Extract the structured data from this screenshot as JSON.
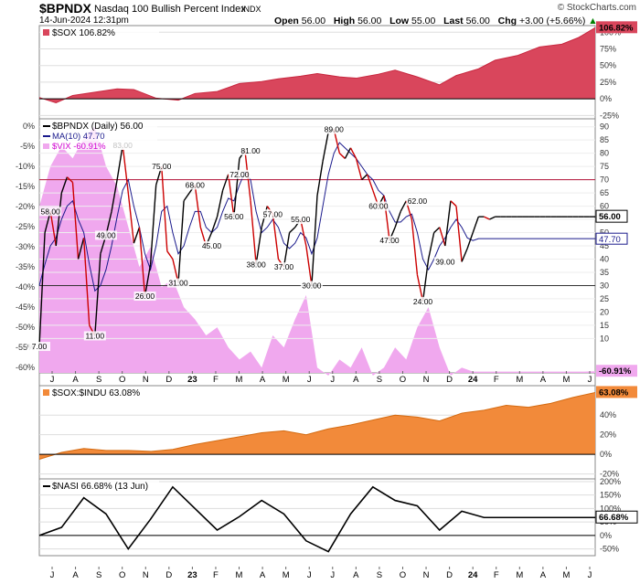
{
  "header": {
    "symbol": "$BPNDX",
    "description": "Nasdaq 100 Bullish Percent Index",
    "exchange": "INDX",
    "date": "14-Jun-2024 12:31pm",
    "brand": "© StockCharts.com",
    "open_label": "Open",
    "open": "56.00",
    "high_label": "High",
    "high": "56.00",
    "low_label": "Low",
    "low": "55.00",
    "last_label": "Last",
    "last": "56.00",
    "chg_label": "Chg",
    "chg": "+3.00 (+5.66%)",
    "up_arrow": "▲"
  },
  "colors": {
    "sox": "#c8273f",
    "sox_fill": "#d9465c",
    "bpndx": "#000000",
    "bpndx_down": "#cc0000",
    "ma": "#1a1a8c",
    "vix": "#f0a8ee",
    "vix_text": "#d000d0",
    "ratio": "#f28a3a",
    "ratio_line": "#d46a10",
    "nasi": "#000000",
    "hline": "#b3143a"
  },
  "chart_data": [
    {
      "id": "sox",
      "type": "area",
      "legend": "$SOX 106.82%",
      "last_label": "106.82%",
      "ylim": [
        -30,
        110
      ],
      "y_ticks": [
        "100%",
        "75%",
        "50%",
        "25%",
        "0%",
        "-25%"
      ],
      "y_tick_values": [
        100,
        75,
        50,
        25,
        0,
        -25
      ],
      "x": [
        0,
        3,
        6,
        10,
        14,
        17,
        21,
        25,
        28,
        32,
        36,
        40,
        43,
        47,
        50,
        54,
        57,
        61,
        64,
        68,
        72,
        75,
        79,
        82,
        86,
        90,
        94,
        97,
        100
      ],
      "values": [
        2,
        -6,
        5,
        10,
        15,
        14,
        1,
        -2,
        8,
        11,
        23,
        26,
        30,
        34,
        38,
        33,
        31,
        37,
        43,
        33,
        21,
        35,
        45,
        58,
        65,
        78,
        82,
        92,
        106.82
      ]
    },
    {
      "id": "bpndx",
      "type": "line",
      "legend_main": "$BPNDX (Daily) 56.00",
      "legend_ma": "MA(10) 47.70",
      "legend_vix": "$VIX -60.91%",
      "y_ticks_right": [
        "90",
        "85",
        "80",
        "75",
        "70",
        "65",
        "60",
        "55",
        "50",
        "45",
        "40",
        "35",
        "30",
        "25",
        "20",
        "15",
        "10"
      ],
      "y_ticks_left": [
        "0%",
        "-5%",
        "-10%",
        "-15%",
        "-20%",
        "-25%",
        "-30%",
        "-35%",
        "-40%",
        "-45%",
        "-50%",
        "-55%",
        "-60%"
      ],
      "ylim": [
        -3,
        93
      ],
      "hlines": [
        70,
        30
      ],
      "bpndx_x": [
        0,
        1,
        2,
        3,
        4,
        5,
        6,
        7,
        8,
        9,
        10,
        11,
        12,
        13,
        14,
        15,
        16,
        17,
        18,
        19,
        20,
        21,
        22,
        23,
        24,
        25,
        26,
        27,
        28,
        29,
        30,
        31,
        32,
        33,
        34,
        35,
        36,
        37,
        38,
        39,
        40,
        41,
        42,
        43,
        44,
        45,
        46,
        47,
        48,
        49,
        50,
        51,
        52,
        53,
        54,
        55,
        56,
        57,
        58,
        59,
        60,
        61,
        62,
        63,
        64,
        65,
        66,
        67,
        68,
        69,
        70,
        71,
        72,
        73,
        74,
        75,
        76,
        77,
        78,
        79,
        80,
        81,
        82,
        83,
        84,
        85,
        86,
        87,
        88,
        89,
        90,
        91,
        92,
        93,
        94,
        95,
        96,
        97,
        98,
        99,
        100
      ],
      "bpndx_y": [
        7,
        50,
        58,
        45,
        65,
        71,
        69,
        40,
        48,
        15,
        11,
        42,
        49,
        58,
        70,
        83,
        65,
        46,
        52,
        26,
        38,
        68,
        75,
        43,
        40,
        31,
        62,
        65,
        68,
        52,
        45,
        50,
        56,
        66,
        72,
        56,
        78,
        81,
        62,
        38,
        52,
        60,
        57,
        40,
        37,
        50,
        52,
        55,
        45,
        30,
        64,
        77,
        88,
        89,
        80,
        78,
        82,
        78,
        70,
        72,
        66,
        60,
        64,
        47,
        52,
        58,
        62,
        55,
        34,
        24,
        40,
        50,
        52,
        45,
        62,
        60,
        39,
        44,
        50,
        56,
        56,
        55,
        56,
        56,
        56,
        56,
        56,
        56,
        56,
        56,
        56,
        56,
        56,
        56,
        56,
        56,
        56,
        56,
        56,
        56,
        56
      ],
      "ma_y": [
        30,
        38,
        45,
        48,
        55,
        60,
        62,
        55,
        50,
        38,
        28,
        30,
        36,
        45,
        56,
        66,
        70,
        60,
        52,
        42,
        36,
        45,
        58,
        60,
        50,
        42,
        45,
        52,
        58,
        58,
        52,
        50,
        52,
        58,
        63,
        62,
        68,
        73,
        70,
        58,
        50,
        52,
        55,
        52,
        46,
        44,
        46,
        50,
        48,
        42,
        48,
        60,
        72,
        80,
        84,
        82,
        80,
        78,
        75,
        72,
        70,
        66,
        64,
        58,
        54,
        54,
        56,
        57,
        50,
        40,
        36,
        40,
        45,
        48,
        52,
        55,
        52,
        48,
        47,
        47.7,
        47.7,
        47.7,
        47.7,
        47.7,
        47.7,
        47.7,
        47.7,
        47.7,
        47.7,
        47.7,
        47.7,
        47.7,
        47.7,
        47.7,
        47.7,
        47.7,
        47.7,
        47.7,
        47.7,
        47.7,
        47.7
      ],
      "labels": [
        {
          "x": 2,
          "y": 58,
          "t": "58.00"
        },
        {
          "x": 0,
          "y": 7,
          "t": "7.00"
        },
        {
          "x": 10,
          "y": 11,
          "t": "11.00"
        },
        {
          "x": 12,
          "y": 49,
          "t": "49.00"
        },
        {
          "x": 15,
          "y": 83,
          "t": "83.00"
        },
        {
          "x": 19,
          "y": 26,
          "t": "26.00"
        },
        {
          "x": 22,
          "y": 75,
          "t": "75.00"
        },
        {
          "x": 25,
          "y": 31,
          "t": "31.00"
        },
        {
          "x": 28,
          "y": 68,
          "t": "68.00"
        },
        {
          "x": 31,
          "y": 45,
          "t": "45.00"
        },
        {
          "x": 35,
          "y": 56,
          "t": "56.00"
        },
        {
          "x": 36,
          "y": 72,
          "t": "72.00"
        },
        {
          "x": 38,
          "y": 81,
          "t": "81.00"
        },
        {
          "x": 39,
          "y": 38,
          "t": "38.00"
        },
        {
          "x": 42,
          "y": 57,
          "t": "57.00"
        },
        {
          "x": 44,
          "y": 37,
          "t": "37.00"
        },
        {
          "x": 47,
          "y": 55,
          "t": "55.00"
        },
        {
          "x": 49,
          "y": 30,
          "t": "30.00"
        },
        {
          "x": 53,
          "y": 89,
          "t": "89.00"
        },
        {
          "x": 61,
          "y": 60,
          "t": "60.00"
        },
        {
          "x": 63,
          "y": 47,
          "t": "47.00"
        },
        {
          "x": 68,
          "y": 62,
          "t": "62.00"
        },
        {
          "x": 69,
          "y": 24,
          "t": "24.00"
        },
        {
          "x": 73,
          "y": 39,
          "t": "39.00"
        }
      ],
      "last_label": "56.00",
      "ma_last_label": "47.70",
      "vix_last_label": "-60.91%",
      "vix_x": [
        0,
        2,
        4,
        6,
        8,
        10,
        12,
        14,
        16,
        18,
        20,
        22,
        24,
        26,
        28,
        30,
        32,
        34,
        36,
        38,
        40,
        42,
        44,
        46,
        48,
        50,
        52,
        54,
        56,
        58,
        60,
        62,
        64,
        66,
        68,
        70,
        72,
        74,
        76,
        78,
        80,
        82,
        84,
        86,
        88,
        90,
        92,
        94,
        96,
        98,
        100
      ],
      "vix_pct": [
        -20,
        -10,
        -5,
        -8,
        -3,
        0,
        -10,
        -15,
        -25,
        -35,
        -30,
        -40,
        -38,
        -45,
        -48,
        -52,
        -50,
        -55,
        -58,
        -56,
        -60,
        -52,
        -55,
        -48,
        -42,
        -60,
        -62,
        -58,
        -60,
        -55,
        -62,
        -60,
        -55,
        -58,
        -50,
        -45,
        -55,
        -62,
        -60,
        -61,
        -61,
        -61,
        -61,
        -61,
        -61,
        -61,
        -61,
        -61,
        -61,
        -61,
        -60.91
      ]
    },
    {
      "id": "ratio",
      "type": "area",
      "legend": "$SOX:$INDU 63.08%",
      "last_label": "63.08%",
      "ylim": [
        -25,
        70
      ],
      "y_ticks": [
        "40%",
        "20%",
        "0%",
        "-20%"
      ],
      "y_tick_values": [
        40,
        20,
        0,
        -20
      ],
      "x": [
        0,
        4,
        8,
        12,
        16,
        20,
        24,
        28,
        32,
        36,
        40,
        44,
        48,
        52,
        56,
        60,
        64,
        68,
        72,
        76,
        80,
        84,
        88,
        92,
        96,
        100
      ],
      "values": [
        -5,
        2,
        6,
        4,
        4,
        3,
        5,
        10,
        14,
        18,
        22,
        24,
        20,
        26,
        30,
        35,
        40,
        38,
        34,
        42,
        45,
        50,
        48,
        52,
        58,
        63.08
      ]
    },
    {
      "id": "nasi",
      "type": "line",
      "legend": "$NASI 66.68% (13 Jun)",
      "last_label": "66.68%",
      "ylim": [
        -75,
        210
      ],
      "y_ticks": [
        "200%",
        "150%",
        "100%",
        "50%",
        "0%",
        "-50%"
      ],
      "y_tick_values": [
        200,
        150,
        100,
        50,
        0,
        -50
      ],
      "x": [
        0,
        4,
        8,
        12,
        16,
        20,
        24,
        28,
        32,
        36,
        40,
        44,
        48,
        52,
        56,
        60,
        64,
        68,
        72,
        76,
        80,
        84,
        88,
        92,
        96,
        100
      ],
      "values": [
        0,
        30,
        140,
        80,
        -50,
        60,
        180,
        100,
        20,
        70,
        130,
        80,
        -20,
        -60,
        80,
        180,
        130,
        110,
        20,
        90,
        66.68,
        66.68,
        66.68,
        66.68,
        66.68,
        66.68
      ]
    }
  ],
  "x_axis_top": [
    "J",
    "A",
    "S",
    "O",
    "N",
    "D",
    "23",
    "F",
    "M",
    "A",
    "M",
    "J",
    "J",
    "A",
    "S",
    "O",
    "N",
    "D",
    "24",
    "F",
    "M",
    "A",
    "M",
    "J"
  ],
  "x_axis_bottom": [
    "J",
    "A",
    "S",
    "O",
    "N",
    "D",
    "23",
    "F",
    "M",
    "A",
    "M",
    "J",
    "J",
    "A",
    "S",
    "O",
    "N",
    "D",
    "24",
    "F",
    "M",
    "A",
    "M",
    "J"
  ]
}
